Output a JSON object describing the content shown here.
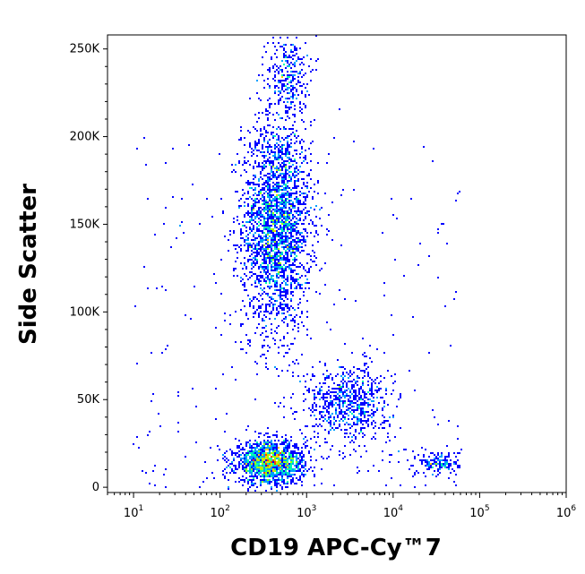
{
  "chart_data": {
    "type": "scatter",
    "subtype": "flow-cytometry-density-dot-plot",
    "xlabel": "CD19 APC-Cy™7",
    "ylabel": "Side Scatter",
    "x_scale": "log",
    "xlim": [
      5,
      1000000
    ],
    "ylim": [
      -3000,
      258000
    ],
    "x_ticks": [
      {
        "base": "10",
        "exp": "1",
        "value": 10
      },
      {
        "base": "10",
        "exp": "2",
        "value": 100
      },
      {
        "base": "10",
        "exp": "3",
        "value": 1000
      },
      {
        "base": "10",
        "exp": "4",
        "value": 10000
      },
      {
        "base": "10",
        "exp": "5",
        "value": 100000
      },
      {
        "base": "10",
        "exp": "6",
        "value": 1000000
      }
    ],
    "y_ticks": [
      {
        "label": "250K",
        "value": 250000
      },
      {
        "label": "200K",
        "value": 200000
      },
      {
        "label": "150K",
        "value": 150000
      },
      {
        "label": "100K",
        "value": 100000
      },
      {
        "label": "50K",
        "value": 50000
      },
      {
        "label": "0",
        "value": 0
      }
    ],
    "grid": false,
    "color_scale": [
      "#0000ff",
      "#00a0ff",
      "#00ffb0",
      "#a0ff00",
      "#ffd000",
      "#ff4000"
    ],
    "populations": [
      {
        "x_center": 450,
        "x_spread_decades": 0.2,
        "y_center": 150000,
        "y_spread": 30000,
        "density": "high",
        "approx_events": 2600
      },
      {
        "x_center": 380,
        "x_spread_decades": 0.2,
        "y_center": 14000,
        "y_spread": 6000,
        "density": "very-high",
        "approx_events": 1500
      },
      {
        "x_center": 3000,
        "x_spread_decades": 0.25,
        "y_center": 48000,
        "y_spread": 11000,
        "density": "medium",
        "approx_events": 700
      },
      {
        "x_center": 35000,
        "x_spread_decades": 0.12,
        "y_center": 14000,
        "y_spread": 3500,
        "density": "medium",
        "approx_events": 160
      },
      {
        "x_center": 600,
        "x_spread_decades": 0.12,
        "y_center": 235000,
        "y_spread": 12000,
        "density": "low",
        "approx_events": 300
      }
    ]
  }
}
